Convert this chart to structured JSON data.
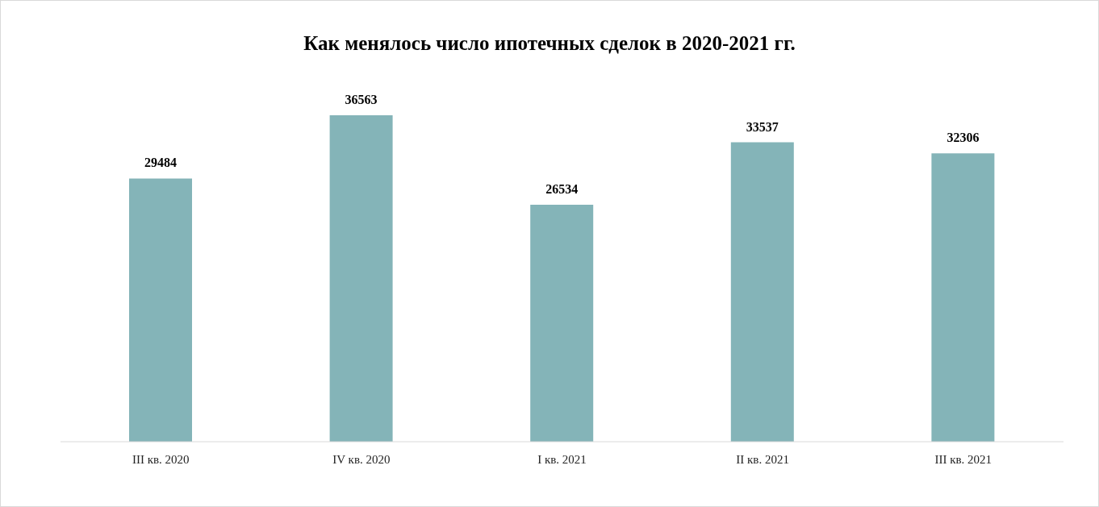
{
  "chart_data": {
    "type": "bar",
    "title": "Как менялось число ипотечных сделок в 2020-2021 гг.",
    "categories": [
      "III кв. 2020",
      "IV кв. 2020",
      "I кв. 2021",
      "II кв. 2021",
      "III кв. 2021"
    ],
    "values": [
      29484,
      36563,
      26534,
      33537,
      32306
    ],
    "color": "#84b4b8",
    "data_labels": true,
    "grid": false,
    "legend": false
  }
}
